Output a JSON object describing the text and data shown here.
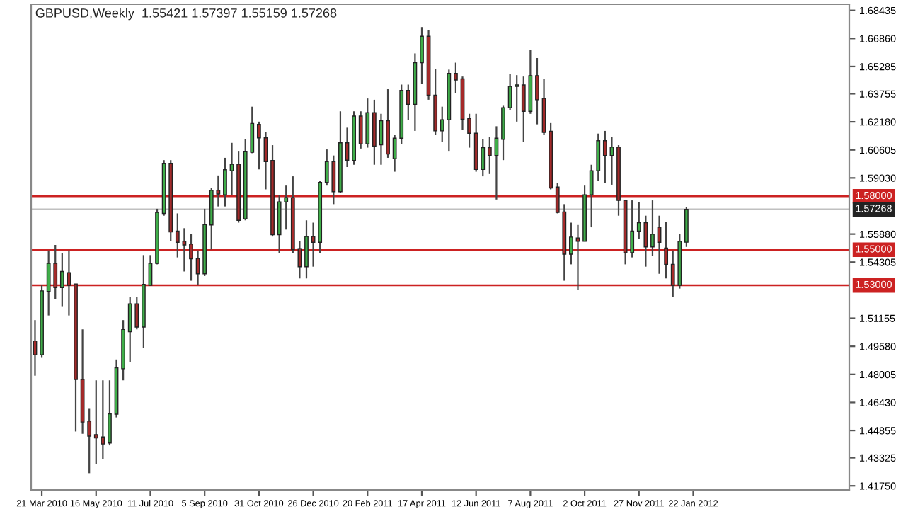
{
  "chart_data": {
    "type": "candlestick",
    "title": "GBPUSD,Weekly  1.55421 1.57397 1.55159 1.57268",
    "x": [
      "2010-03-14",
      "2010-03-21",
      "2010-03-28",
      "2010-04-04",
      "2010-04-11",
      "2010-04-18",
      "2010-04-25",
      "2010-05-02",
      "2010-05-09",
      "2010-05-16",
      "2010-05-23",
      "2010-05-30",
      "2010-06-06",
      "2010-06-13",
      "2010-06-20",
      "2010-06-27",
      "2010-07-04",
      "2010-07-11",
      "2010-07-18",
      "2010-07-25",
      "2010-08-01",
      "2010-08-08",
      "2010-08-15",
      "2010-08-22",
      "2010-08-29",
      "2010-09-05",
      "2010-09-12",
      "2010-09-19",
      "2010-09-26",
      "2010-10-03",
      "2010-10-10",
      "2010-10-17",
      "2010-10-24",
      "2010-10-31",
      "2010-11-07",
      "2010-11-14",
      "2010-11-21",
      "2010-11-28",
      "2010-12-05",
      "2010-12-12",
      "2010-12-19",
      "2010-12-26",
      "2011-01-02",
      "2011-01-09",
      "2011-01-16",
      "2011-01-23",
      "2011-01-30",
      "2011-02-06",
      "2011-02-13",
      "2011-02-20",
      "2011-02-27",
      "2011-03-06",
      "2011-03-13",
      "2011-03-20",
      "2011-03-27",
      "2011-04-03",
      "2011-04-10",
      "2011-04-17",
      "2011-04-24",
      "2011-05-01",
      "2011-05-08",
      "2011-05-15",
      "2011-05-22",
      "2011-05-29",
      "2011-06-05",
      "2011-06-12",
      "2011-06-19",
      "2011-06-26",
      "2011-07-03",
      "2011-07-10",
      "2011-07-17",
      "2011-07-24",
      "2011-07-31",
      "2011-08-07",
      "2011-08-14",
      "2011-08-21",
      "2011-08-28",
      "2011-09-04",
      "2011-09-11",
      "2011-09-18",
      "2011-09-25",
      "2011-10-02",
      "2011-10-09",
      "2011-10-16",
      "2011-10-23",
      "2011-10-30",
      "2011-11-06",
      "2011-11-13",
      "2011-11-20",
      "2011-11-27",
      "2011-12-04",
      "2011-12-11",
      "2011-12-18",
      "2011-12-25",
      "2012-01-01",
      "2012-01-08",
      "2012-01-15"
    ],
    "ohlc": [
      [
        1.4988,
        1.5105,
        1.4793,
        1.491
      ],
      [
        1.491,
        1.53,
        1.4897,
        1.5269
      ],
      [
        1.5266,
        1.5496,
        1.5131,
        1.5423
      ],
      [
        1.5423,
        1.5527,
        1.5222,
        1.5287
      ],
      [
        1.5287,
        1.5483,
        1.5183,
        1.5378
      ],
      [
        1.5371,
        1.5496,
        1.5131,
        1.53
      ],
      [
        1.5308,
        1.5308,
        1.448,
        1.4772
      ],
      [
        1.4772,
        1.5053,
        1.4467,
        1.4533
      ],
      [
        1.4538,
        1.4611,
        1.4246,
        1.4454
      ],
      [
        1.4462,
        1.4767,
        1.4298,
        1.4444
      ],
      [
        1.4449,
        1.4767,
        1.4324,
        1.441
      ],
      [
        1.4415,
        1.4767,
        1.4402,
        1.4579
      ],
      [
        1.4577,
        1.4884,
        1.4559,
        1.4837
      ],
      [
        1.4832,
        1.5105,
        1.4767,
        1.5053
      ],
      [
        1.504,
        1.5235,
        1.4871,
        1.5196
      ],
      [
        1.5196,
        1.5235,
        1.5053,
        1.5066
      ],
      [
        1.5066,
        1.547,
        1.4949,
        1.5306
      ],
      [
        1.53,
        1.547,
        1.53,
        1.5423
      ],
      [
        1.5423,
        1.573,
        1.5418,
        1.5709
      ],
      [
        1.5704,
        1.6003,
        1.5691,
        1.5985
      ],
      [
        1.5985,
        1.6003,
        1.5548,
        1.56
      ],
      [
        1.5605,
        1.5704,
        1.5457,
        1.5542
      ],
      [
        1.5548,
        1.5621,
        1.5378,
        1.5527
      ],
      [
        1.5532,
        1.5587,
        1.5326,
        1.5449
      ],
      [
        1.5451,
        1.5496,
        1.53,
        1.5365
      ],
      [
        1.5365,
        1.573,
        1.5352,
        1.5641
      ],
      [
        1.5639,
        1.5847,
        1.5501,
        1.5834
      ],
      [
        1.5834,
        1.5917,
        1.5743,
        1.5813
      ],
      [
        1.5808,
        1.6016,
        1.5743,
        1.5949
      ],
      [
        1.5943,
        1.61,
        1.5808,
        1.598
      ],
      [
        1.598,
        1.6055,
        1.5652,
        1.5665
      ],
      [
        1.5673,
        1.612,
        1.5665,
        1.6053
      ],
      [
        1.6047,
        1.6303,
        1.6042,
        1.6209
      ],
      [
        1.6204,
        1.6219,
        1.5951,
        1.6128
      ],
      [
        1.6128,
        1.6159,
        1.5839,
        1.5995
      ],
      [
        1.6001,
        1.6087,
        1.5574,
        1.5584
      ],
      [
        1.5584,
        1.5808,
        1.5483,
        1.5769
      ],
      [
        1.5769,
        1.586,
        1.5613,
        1.5792
      ],
      [
        1.5792,
        1.5912,
        1.5483,
        1.5501
      ],
      [
        1.5506,
        1.5548,
        1.5339,
        1.5405
      ],
      [
        1.5405,
        1.5665,
        1.5339,
        1.5574
      ],
      [
        1.5574,
        1.5652,
        1.5405,
        1.5542
      ],
      [
        1.5542,
        1.5886,
        1.5483,
        1.5878
      ],
      [
        1.5878,
        1.6063,
        1.586,
        1.5995
      ],
      [
        1.5995,
        1.6029,
        1.5756,
        1.5826
      ],
      [
        1.5826,
        1.6277,
        1.5821,
        1.61
      ],
      [
        1.61,
        1.6185,
        1.5964,
        1.6003
      ],
      [
        1.6001,
        1.6277,
        1.5977,
        1.625
      ],
      [
        1.625,
        1.6277,
        1.6068,
        1.6094
      ],
      [
        1.6094,
        1.6349,
        1.6073,
        1.6269
      ],
      [
        1.6269,
        1.6342,
        1.5977,
        1.6081
      ],
      [
        1.6089,
        1.6263,
        1.5977,
        1.6224
      ],
      [
        1.6224,
        1.6401,
        1.6016,
        1.6037
      ],
      [
        1.6011,
        1.6146,
        1.5938,
        1.6126
      ],
      [
        1.6126,
        1.6427,
        1.6094,
        1.6394
      ],
      [
        1.6394,
        1.6427,
        1.623,
        1.6316
      ],
      [
        1.6316,
        1.6602,
        1.6167,
        1.655
      ],
      [
        1.655,
        1.675,
        1.6433,
        1.6698
      ],
      [
        1.6698,
        1.6732,
        1.6342,
        1.6368
      ],
      [
        1.6368,
        1.6516,
        1.6146,
        1.6167
      ],
      [
        1.6167,
        1.6303,
        1.6107,
        1.623
      ],
      [
        1.623,
        1.6511,
        1.6055,
        1.649
      ],
      [
        1.649,
        1.655,
        1.6381,
        1.6453
      ],
      [
        1.6459,
        1.6472,
        1.6172,
        1.6232
      ],
      [
        1.6237,
        1.6263,
        1.6073,
        1.6154
      ],
      [
        1.6154,
        1.6263,
        1.5938,
        1.5951
      ],
      [
        1.5951,
        1.612,
        1.5912,
        1.6073
      ],
      [
        1.6073,
        1.6133,
        1.5925,
        1.6029
      ],
      [
        1.6029,
        1.6193,
        1.5782,
        1.6126
      ],
      [
        1.612,
        1.6308,
        1.6003,
        1.6297
      ],
      [
        1.6297,
        1.6485,
        1.6282,
        1.6417
      ],
      [
        1.6417,
        1.648,
        1.6219,
        1.6425
      ],
      [
        1.6425,
        1.6472,
        1.6107,
        1.6277
      ],
      [
        1.6277,
        1.662,
        1.6263,
        1.6477
      ],
      [
        1.6477,
        1.6576,
        1.6204,
        1.6342
      ],
      [
        1.6349,
        1.6459,
        1.6146,
        1.6159
      ],
      [
        1.6165,
        1.6211,
        1.5839,
        1.5847
      ],
      [
        1.5852,
        1.5873,
        1.5704,
        1.5709
      ],
      [
        1.5712,
        1.5756,
        1.5326,
        1.5475
      ],
      [
        1.5475,
        1.5652,
        1.5418,
        1.5571
      ],
      [
        1.5566,
        1.5639,
        1.5274,
        1.5548
      ],
      [
        1.5548,
        1.586,
        1.5548,
        1.5808
      ],
      [
        1.5808,
        1.5977,
        1.5626,
        1.5943
      ],
      [
        1.5943,
        1.6152,
        1.5886,
        1.6112
      ],
      [
        1.6112,
        1.6167,
        1.5873,
        1.6029
      ],
      [
        1.6029,
        1.6133,
        1.5865,
        1.6076
      ],
      [
        1.6076,
        1.6087,
        1.5691,
        1.5777
      ],
      [
        1.5777,
        1.5777,
        1.5418,
        1.5483
      ],
      [
        1.5483,
        1.5777,
        1.5457,
        1.5605
      ],
      [
        1.5605,
        1.5769,
        1.5561,
        1.5652
      ],
      [
        1.5652,
        1.5691,
        1.5405,
        1.5516
      ],
      [
        1.5516,
        1.5777,
        1.5464,
        1.5587
      ],
      [
        1.5626,
        1.5691,
        1.5365,
        1.5542
      ],
      [
        1.5509,
        1.5657,
        1.5339,
        1.5418
      ],
      [
        1.5418,
        1.5496,
        1.5235,
        1.53
      ],
      [
        1.53,
        1.5587,
        1.5282,
        1.5548
      ],
      [
        1.55421,
        1.57397,
        1.55159,
        1.57268
      ]
    ],
    "colors": [
      "#a52a2a",
      "#3fae49",
      "#3fae49",
      "#a52a2a",
      "#3fae49",
      "#a52a2a",
      "#a52a2a",
      "#a52a2a",
      "#a52a2a",
      "#a52a2a",
      "#a52a2a",
      "#3fae49",
      "#3fae49",
      "#3fae49",
      "#3fae49",
      "#a52a2a",
      "#3fae49",
      "#3fae49",
      "#3fae49",
      "#3fae49",
      "#a52a2a",
      "#a52a2a",
      "#a52a2a",
      "#a52a2a",
      "#a52a2a",
      "#3fae49",
      "#3fae49",
      "#a52a2a",
      "#3fae49",
      "#3fae49",
      "#a52a2a",
      "#3fae49",
      "#3fae49",
      "#a52a2a",
      "#a52a2a",
      "#a52a2a",
      "#3fae49",
      "#3fae49",
      "#a52a2a",
      "#a52a2a",
      "#3fae49",
      "#a52a2a",
      "#3fae49",
      "#3fae49",
      "#a52a2a",
      "#3fae49",
      "#a52a2a",
      "#3fae49",
      "#a52a2a",
      "#3fae49",
      "#a52a2a",
      "#3fae49",
      "#a52a2a",
      "#3fae49",
      "#3fae49",
      "#a52a2a",
      "#3fae49",
      "#3fae49",
      "#a52a2a",
      "#a52a2a",
      "#3fae49",
      "#3fae49",
      "#a52a2a",
      "#a52a2a",
      "#a52a2a",
      "#a52a2a",
      "#3fae49",
      "#a52a2a",
      "#3fae49",
      "#3fae49",
      "#3fae49",
      "#3fae49",
      "#a52a2a",
      "#3fae49",
      "#a52a2a",
      "#a52a2a",
      "#a52a2a",
      "#a52a2a",
      "#a52a2a",
      "#3fae49",
      "#a52a2a",
      "#3fae49",
      "#3fae49",
      "#3fae49",
      "#a52a2a",
      "#3fae49",
      "#a52a2a",
      "#a52a2a",
      "#3fae49",
      "#3fae49",
      "#a52a2a",
      "#3fae49",
      "#a52a2a",
      "#a52a2a",
      "#a52a2a",
      "#3fae49",
      "#3fae49"
    ],
    "xlim": [
      "2010-03-10",
      "2012-07-01"
    ],
    "xticks": [
      {
        "value": "2010-03-21",
        "label": "21 Mar 2010"
      },
      {
        "value": "2010-05-16",
        "label": "16 May 2010"
      },
      {
        "value": "2010-07-11",
        "label": "11 Jul 2010"
      },
      {
        "value": "2010-09-05",
        "label": "5 Sep 2010"
      },
      {
        "value": "2010-10-31",
        "label": "31 Oct 2010"
      },
      {
        "value": "2010-12-26",
        "label": "26 Dec 2010"
      },
      {
        "value": "2011-02-20",
        "label": "20 Feb 2011"
      },
      {
        "value": "2011-04-17",
        "label": "17 Apr 2011"
      },
      {
        "value": "2011-06-12",
        "label": "12 Jun 2011"
      },
      {
        "value": "2011-08-07",
        "label": "7 Aug 2011"
      },
      {
        "value": "2011-10-02",
        "label": "2 Oct 2011"
      },
      {
        "value": "2011-11-27",
        "label": "27 Nov 2011"
      },
      {
        "value": "2012-01-22",
        "label": "22 Jan 2012"
      }
    ],
    "ylim": [
      1.4152,
      1.6878
    ],
    "yticks": [
      {
        "value": 1.68435,
        "label": "1.68435"
      },
      {
        "value": 1.6686,
        "label": "1.66860"
      },
      {
        "value": 1.65285,
        "label": "1.65285"
      },
      {
        "value": 1.63755,
        "label": "1.63755"
      },
      {
        "value": 1.6218,
        "label": "1.62180"
      },
      {
        "value": 1.60605,
        "label": "1.60605"
      },
      {
        "value": 1.5903,
        "label": "1.59030"
      },
      {
        "value": 1.5588,
        "label": "1.55880"
      },
      {
        "value": 1.54305,
        "label": "1.54305"
      },
      {
        "value": 1.51155,
        "label": "1.51155"
      },
      {
        "value": 1.4958,
        "label": "1.49580"
      },
      {
        "value": 1.48005,
        "label": "1.48005"
      },
      {
        "value": 1.4643,
        "label": "1.46430"
      },
      {
        "value": 1.44855,
        "label": "1.44855"
      },
      {
        "value": 1.43325,
        "label": "1.43325"
      },
      {
        "value": 1.4175,
        "label": "1.41750"
      }
    ],
    "ref_lines": [
      {
        "axis": "y",
        "value": 1.58,
        "label": "1.58000",
        "color": "#cc2222"
      },
      {
        "axis": "y",
        "value": 1.57268,
        "label": "1.57268",
        "color": "#c0c0c0"
      },
      {
        "axis": "y",
        "value": 1.55,
        "label": "1.55000",
        "color": "#cc2222"
      },
      {
        "axis": "y",
        "value": 1.53,
        "label": "1.53000",
        "color": "#cc2222"
      }
    ],
    "grid": false
  }
}
